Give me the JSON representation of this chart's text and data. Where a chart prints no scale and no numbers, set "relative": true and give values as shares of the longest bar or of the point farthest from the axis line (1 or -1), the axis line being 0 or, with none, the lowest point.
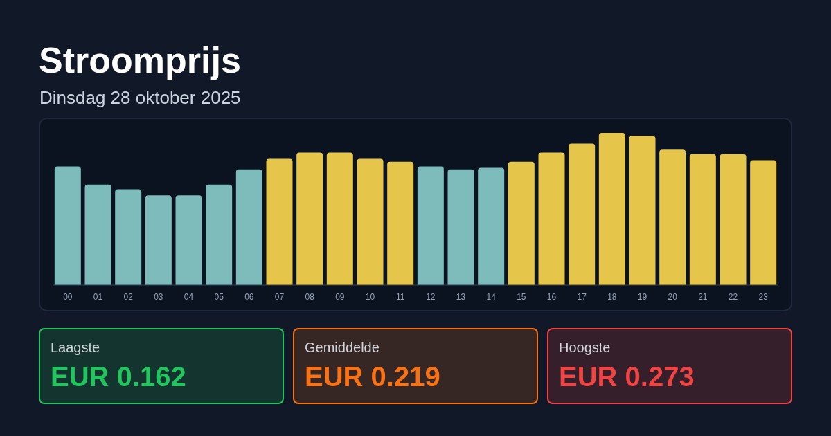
{
  "chart_data": [
    {
      "type": "bar",
      "title": "Stroomprijs",
      "subtitle": "Dinsdag 28 oktober 2025",
      "relative": true,
      "categories": [
        "00",
        "01",
        "02",
        "03",
        "04",
        "05",
        "06",
        "07",
        "08",
        "09",
        "10",
        "11",
        "12",
        "13",
        "14",
        "15",
        "16",
        "17",
        "18",
        "19",
        "20",
        "21",
        "22",
        "23"
      ],
      "values": [
        0.78,
        0.66,
        0.63,
        0.59,
        0.59,
        0.66,
        0.76,
        0.83,
        0.87,
        0.87,
        0.83,
        0.81,
        0.78,
        0.76,
        0.77,
        0.81,
        0.87,
        0.93,
        1,
        0.98,
        0.89,
        0.86,
        0.86,
        0.82
      ],
      "colors": [
        "#7dbcbb",
        "#7dbcbb",
        "#7dbcbb",
        "#7dbcbb",
        "#7dbcbb",
        "#7dbcbb",
        "#7dbcbb",
        "#e6c64a",
        "#e6c64a",
        "#e6c64a",
        "#e6c64a",
        "#e6c64a",
        "#7dbcbb",
        "#7dbcbb",
        "#7dbcbb",
        "#e6c64a",
        "#e6c64a",
        "#e6c64a",
        "#e6c64a",
        "#e6c64a",
        "#e6c64a",
        "#e6c64a",
        "#e6c64a",
        "#e6c64a"
      ]
    },
    {
      "type": "other",
      "title": "Laagste",
      "annotations": [
        "EUR 0.162"
      ],
      "color": "#22c55e"
    },
    {
      "type": "other",
      "title": "Gemiddelde",
      "annotations": [
        "EUR 0.219"
      ],
      "color": "#f97316"
    },
    {
      "type": "other",
      "title": "Hoogste",
      "annotations": [
        "EUR 0.273"
      ],
      "color": "#ef4444"
    }
  ]
}
